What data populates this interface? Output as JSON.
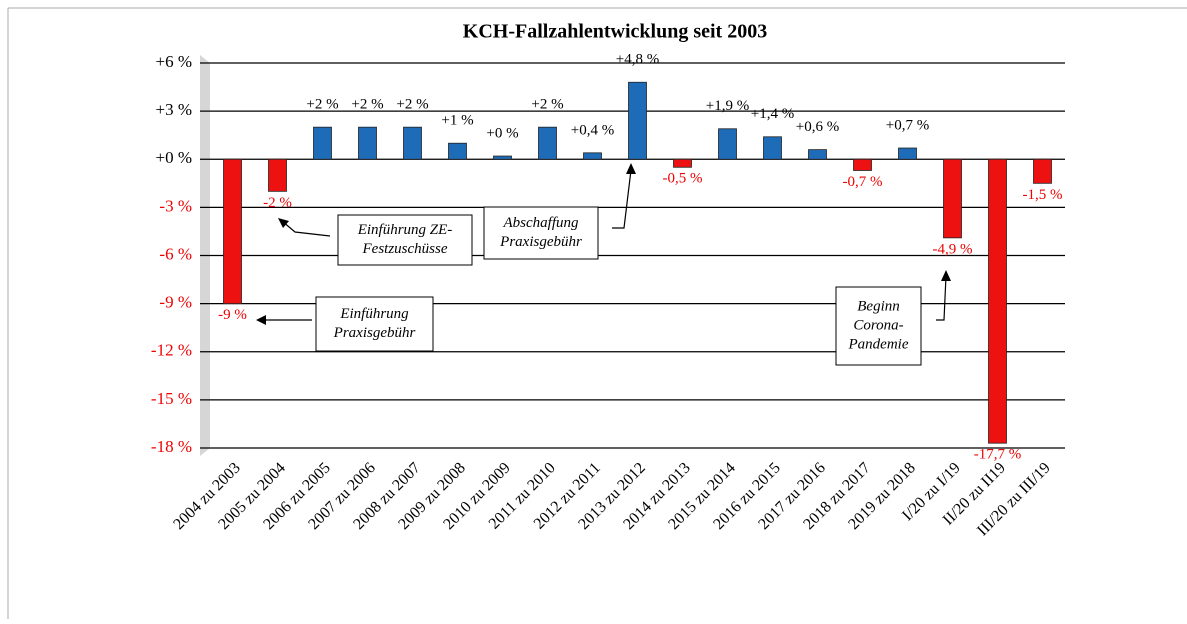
{
  "chart_data": {
    "type": "bar",
    "title": "KCH-Fallzahlentwicklung  seit 2003",
    "categories": [
      "2004 zu 2003",
      "2005 zu 2004",
      "2006 zu 2005",
      "2007 zu 2006",
      "2008 zu 2007",
      "2009 zu 2008",
      "2010 zu 2009",
      "2011 zu 2010",
      "2012 zu 2011",
      "2013 zu 2012",
      "2014 zu 2013",
      "2015 zu 2014",
      "2016 zu 2015",
      "2017 zu 2016",
      "2018 zu 2017",
      "2019 zu 2018",
      "I/20 zu I/19",
      "II/20 zu II19",
      "III/20 zu III/19"
    ],
    "values": [
      -9,
      -2,
      2,
      2,
      2,
      1,
      0.2,
      2,
      0.4,
      4.8,
      -0.5,
      1.9,
      1.4,
      0.6,
      -0.7,
      0.7,
      -4.9,
      -17.7,
      -1.5
    ],
    "value_labels": [
      "-9 %",
      "-2 %",
      "+2 %",
      "+2 %",
      "+2 %",
      "+1 %",
      "+0 %",
      "+2 %",
      "+0,4 %",
      "+4,8 %",
      "-0,5 %",
      "+1,9 %",
      "+1,4 %",
      "+0,6 %",
      "-0,7 %",
      "+0,7 %",
      "-4,9 %",
      "-17,7 %",
      "-1,5 %"
    ],
    "positive_color": "#1e6cb8",
    "negative_color": "#ee1111",
    "ylim": [
      -18,
      6
    ],
    "yticks": [
      {
        "value": 6,
        "label": "+6 %"
      },
      {
        "value": 3,
        "label": "+3 %"
      },
      {
        "value": 0,
        "label": "+0 %"
      },
      {
        "value": -3,
        "label": "-3 %"
      },
      {
        "value": -6,
        "label": "-6 %"
      },
      {
        "value": -9,
        "label": "-9 %"
      },
      {
        "value": -12,
        "label": "-12 %"
      },
      {
        "value": -15,
        "label": "-15 %"
      },
      {
        "value": -18,
        "label": "-18 %"
      }
    ],
    "grid": true,
    "annotations": [
      {
        "lines": [
          "Einführung",
          "Praxisgebühr"
        ]
      },
      {
        "lines": [
          "Einführung ZE-",
          "Festzuschüsse"
        ]
      },
      {
        "lines": [
          "Abschaffung",
          "Praxisgebühr"
        ]
      },
      {
        "lines": [
          "Beginn",
          "Corona-",
          "Pandemie"
        ]
      }
    ]
  }
}
